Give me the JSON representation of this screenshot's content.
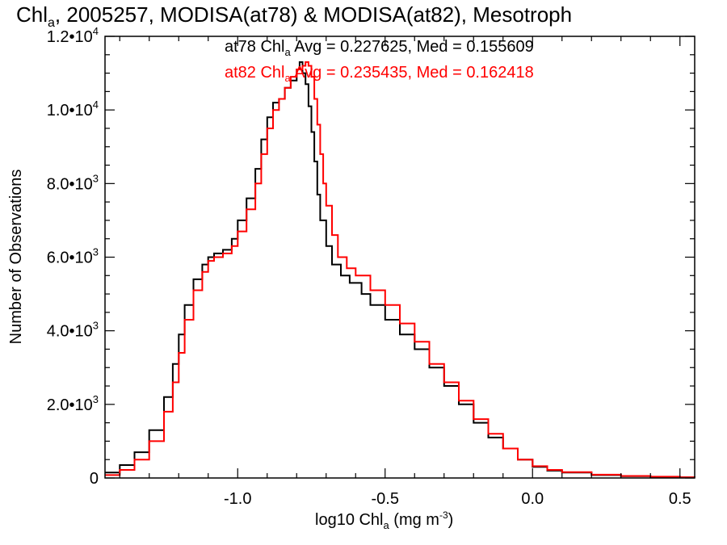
{
  "chart_data": {
    "type": "line",
    "title": {
      "prefix": "Chl",
      "sub": "a",
      "suffix": ", 2005257, MODISA(at78) & MODISA(at82), Mesotroph"
    },
    "xlabel": {
      "prefix": "log10 Chl",
      "sub": "a",
      "mid": " (mg m",
      "sup": "-3",
      "suffix": ")"
    },
    "ylabel": "Number of Observations",
    "xlim": [
      -1.45,
      0.55
    ],
    "ylim": [
      0,
      12000
    ],
    "x_ticks": [
      {
        "value": -1.0,
        "label": "-1.0"
      },
      {
        "value": -0.5,
        "label": "-0.5"
      },
      {
        "value": 0.0,
        "label": "0.0"
      },
      {
        "value": 0.5,
        "label": "0.5"
      }
    ],
    "y_ticks": [
      {
        "value": 0,
        "mant": "0",
        "exp": ""
      },
      {
        "value": 2000,
        "mant": "2.0•10",
        "exp": "3"
      },
      {
        "value": 4000,
        "mant": "4.0•10",
        "exp": "3"
      },
      {
        "value": 6000,
        "mant": "6.0•10",
        "exp": "3"
      },
      {
        "value": 8000,
        "mant": "8.0•10",
        "exp": "3"
      },
      {
        "value": 10000,
        "mant": "1.0•10",
        "exp": "4"
      },
      {
        "value": 12000,
        "mant": "1.2•10",
        "exp": "4"
      }
    ],
    "grid": false,
    "legend_position": "top-center",
    "series": [
      {
        "name": "at78",
        "color": "#000000",
        "stats_label": {
          "prefix": "at78 Chl",
          "sub": "a",
          "suffix": " Avg = 0.227625, Med = 0.155609"
        },
        "points": [
          [
            -1.45,
            150
          ],
          [
            -1.4,
            350
          ],
          [
            -1.35,
            700
          ],
          [
            -1.3,
            1300
          ],
          [
            -1.25,
            2200
          ],
          [
            -1.22,
            3100
          ],
          [
            -1.2,
            3900
          ],
          [
            -1.18,
            4700
          ],
          [
            -1.15,
            5400
          ],
          [
            -1.12,
            5800
          ],
          [
            -1.1,
            6000
          ],
          [
            -1.08,
            6100
          ],
          [
            -1.05,
            6200
          ],
          [
            -1.02,
            6500
          ],
          [
            -1.0,
            7000
          ],
          [
            -0.97,
            7600
          ],
          [
            -0.94,
            8400
          ],
          [
            -0.92,
            9200
          ],
          [
            -0.9,
            9800
          ],
          [
            -0.88,
            10200
          ],
          [
            -0.86,
            10300
          ],
          [
            -0.84,
            10600
          ],
          [
            -0.82,
            10800
          ],
          [
            -0.8,
            11100
          ],
          [
            -0.79,
            11300
          ],
          [
            -0.78,
            11000
          ],
          [
            -0.77,
            10700
          ],
          [
            -0.76,
            10100
          ],
          [
            -0.75,
            9400
          ],
          [
            -0.74,
            8600
          ],
          [
            -0.73,
            7700
          ],
          [
            -0.72,
            7000
          ],
          [
            -0.7,
            6300
          ],
          [
            -0.68,
            5800
          ],
          [
            -0.65,
            5500
          ],
          [
            -0.62,
            5300
          ],
          [
            -0.58,
            5000
          ],
          [
            -0.55,
            4700
          ],
          [
            -0.5,
            4300
          ],
          [
            -0.45,
            3900
          ],
          [
            -0.4,
            3500
          ],
          [
            -0.35,
            3000
          ],
          [
            -0.3,
            2500
          ],
          [
            -0.25,
            2000
          ],
          [
            -0.2,
            1500
          ],
          [
            -0.15,
            1100
          ],
          [
            -0.1,
            800
          ],
          [
            -0.05,
            500
          ],
          [
            0.0,
            300
          ],
          [
            0.05,
            200
          ],
          [
            0.1,
            150
          ],
          [
            0.2,
            80
          ],
          [
            0.3,
            50
          ],
          [
            0.4,
            30
          ],
          [
            0.5,
            20
          ],
          [
            0.55,
            10
          ]
        ]
      },
      {
        "name": "at82",
        "color": "#ff0000",
        "stats_label": {
          "prefix": "at82 Chl",
          "sub": "a",
          "suffix": " Avg = 0.235435, Med = 0.162418"
        },
        "points": [
          [
            -1.45,
            80
          ],
          [
            -1.4,
            220
          ],
          [
            -1.35,
            500
          ],
          [
            -1.3,
            1000
          ],
          [
            -1.25,
            1800
          ],
          [
            -1.22,
            2600
          ],
          [
            -1.2,
            3400
          ],
          [
            -1.18,
            4300
          ],
          [
            -1.15,
            5100
          ],
          [
            -1.12,
            5600
          ],
          [
            -1.1,
            5900
          ],
          [
            -1.08,
            6000
          ],
          [
            -1.05,
            6100
          ],
          [
            -1.02,
            6300
          ],
          [
            -1.0,
            6700
          ],
          [
            -0.97,
            7300
          ],
          [
            -0.94,
            8000
          ],
          [
            -0.92,
            8800
          ],
          [
            -0.9,
            9500
          ],
          [
            -0.88,
            10000
          ],
          [
            -0.86,
            10300
          ],
          [
            -0.84,
            10600
          ],
          [
            -0.82,
            10900
          ],
          [
            -0.8,
            11100
          ],
          [
            -0.78,
            11200
          ],
          [
            -0.77,
            11300
          ],
          [
            -0.76,
            11200
          ],
          [
            -0.75,
            10900
          ],
          [
            -0.74,
            10300
          ],
          [
            -0.73,
            9600
          ],
          [
            -0.72,
            8800
          ],
          [
            -0.71,
            8000
          ],
          [
            -0.7,
            7400
          ],
          [
            -0.68,
            6600
          ],
          [
            -0.66,
            6000
          ],
          [
            -0.63,
            5700
          ],
          [
            -0.6,
            5500
          ],
          [
            -0.55,
            5100
          ],
          [
            -0.5,
            4700
          ],
          [
            -0.45,
            4200
          ],
          [
            -0.4,
            3700
          ],
          [
            -0.35,
            3100
          ],
          [
            -0.3,
            2600
          ],
          [
            -0.25,
            2100
          ],
          [
            -0.2,
            1600
          ],
          [
            -0.15,
            1200
          ],
          [
            -0.1,
            800
          ],
          [
            -0.05,
            500
          ],
          [
            0.0,
            320
          ],
          [
            0.05,
            220
          ],
          [
            0.1,
            160
          ],
          [
            0.2,
            90
          ],
          [
            0.3,
            55
          ],
          [
            0.4,
            35
          ],
          [
            0.5,
            20
          ],
          [
            0.55,
            10
          ]
        ]
      }
    ]
  }
}
